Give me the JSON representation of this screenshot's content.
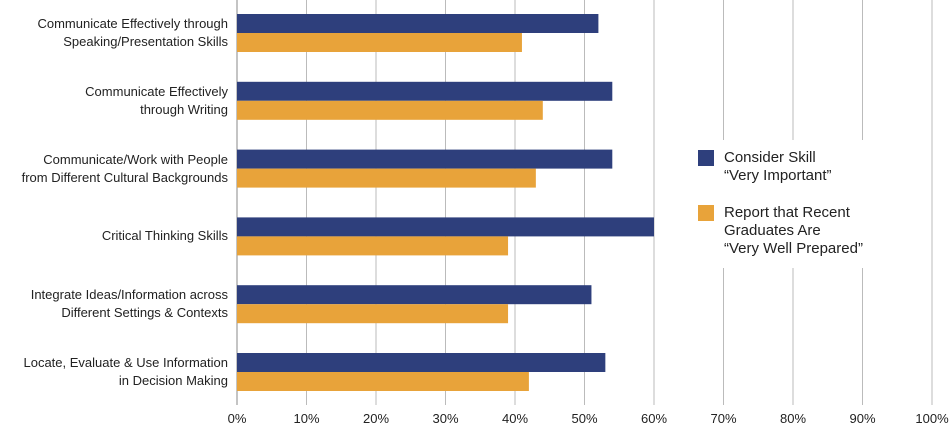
{
  "chart_data": {
    "type": "bar",
    "orientation": "horizontal",
    "categories": [
      "Communicate Effectively through\nSpeaking/Presentation Skills",
      "Communicate Effectively\nthrough Writing",
      "Communicate/Work with People\nfrom Different Cultural Backgrounds",
      "Critical Thinking Skills",
      "Integrate Ideas/Information across\nDifferent Settings & Contexts",
      "Locate, Evaluate & Use Information\nin Decision Making"
    ],
    "series": [
      {
        "name": "Consider Skill\n“Very Important”",
        "color": "#2e3f7c",
        "values": [
          52,
          54,
          54,
          60,
          51,
          53
        ]
      },
      {
        "name": "Report that Recent\nGraduates Are\n“Very Well Prepared”",
        "color": "#e8a33a",
        "values": [
          41,
          44,
          43,
          39,
          39,
          42
        ]
      }
    ],
    "xlim": [
      0,
      100
    ],
    "xticks": [
      {
        "value": 0,
        "label": "0%"
      },
      {
        "value": 10,
        "label": "10%"
      },
      {
        "value": 20,
        "label": "20%"
      },
      {
        "value": 30,
        "label": "30%"
      },
      {
        "value": 40,
        "label": "40%"
      },
      {
        "value": 50,
        "label": "50%"
      },
      {
        "value": 60,
        "label": "60%"
      },
      {
        "value": 70,
        "label": "70%"
      },
      {
        "value": 80,
        "label": "80%"
      },
      {
        "value": 90,
        "label": "90%"
      },
      {
        "value": 100,
        "label": "100%"
      }
    ],
    "grid": true,
    "legend": "right"
  }
}
